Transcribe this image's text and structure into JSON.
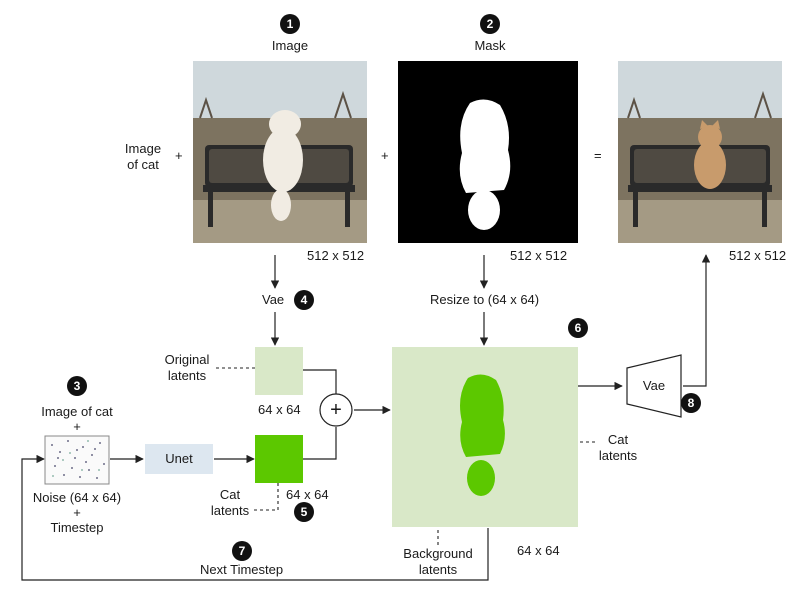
{
  "colors": {
    "latent_bg": "#d9e8c8",
    "cat_green": "#5cc800",
    "unet_box": "#dde7f0",
    "arrow": "#222222",
    "sky": "#cfd8dc",
    "field": "#7d7360",
    "bench": "#2a2a2a"
  },
  "steps": {
    "s1": "1",
    "s2": "2",
    "s3": "3",
    "s4": "4",
    "s5": "5",
    "s6": "6",
    "s7": "7",
    "s8": "8"
  },
  "image_panel": {
    "title": "Image",
    "size": "512 x 512"
  },
  "mask_panel": {
    "title": "Mask",
    "size": "512 x 512"
  },
  "result_panel": {
    "size": "512 x 512"
  },
  "operators": {
    "plus_1": "+",
    "plus_2": "+",
    "equals": "=",
    "plus_noise": "+",
    "plus_timestep": "+"
  },
  "labels": {
    "image_of_cat_line1": "Image",
    "image_of_cat_line2": "of cat",
    "vae_encode": "Vae",
    "resize": "Resize to (64 x 64)",
    "original_latents_1": "Original",
    "original_latents_2": "latents",
    "orig_size": "64 x 64",
    "image_of_cat_noise": "Image of cat",
    "noise": "Noise (64 x 64)",
    "timestep": "Timestep",
    "unet": "Unet",
    "cat_latents_1": "Cat",
    "cat_latents_2": "latents",
    "cat_size": "64 x 64",
    "combined_size": "64 x 64",
    "cat_latents_right_1": "Cat",
    "cat_latents_right_2": "latents",
    "background_latents_1": "Background",
    "background_latents_2": "latents",
    "vae_decode": "Vae",
    "next_timestep": "Next Timestep",
    "sum_symbol": "+"
  }
}
